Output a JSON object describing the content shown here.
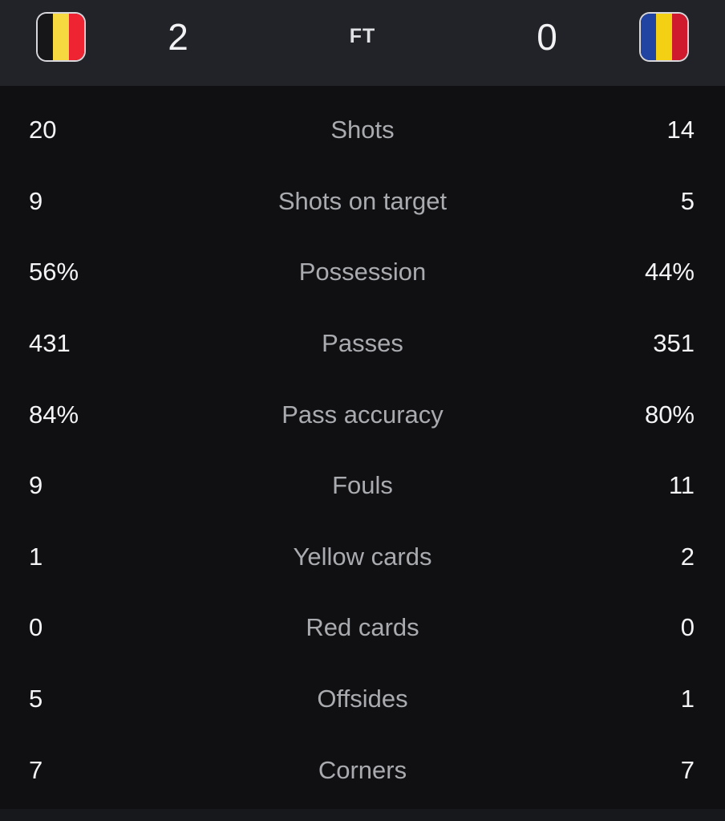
{
  "header": {
    "home_team": "Belgium",
    "away_team": "Romania",
    "home_score": "2",
    "away_score": "0",
    "status": "FT",
    "home_flag": {
      "stripes": [
        "#161619",
        "#f6d840",
        "#ee2433"
      ]
    },
    "away_flag": {
      "stripes": [
        "#2143a1",
        "#f4d014",
        "#cf1a2e"
      ]
    }
  },
  "stats": {
    "rows": [
      {
        "home": "20",
        "label": "Shots",
        "away": "14"
      },
      {
        "home": "9",
        "label": "Shots on target",
        "away": "5"
      },
      {
        "home": "56%",
        "label": "Possession",
        "away": "44%"
      },
      {
        "home": "431",
        "label": "Passes",
        "away": "351"
      },
      {
        "home": "84%",
        "label": "Pass accuracy",
        "away": "80%"
      },
      {
        "home": "9",
        "label": "Fouls",
        "away": "11"
      },
      {
        "home": "1",
        "label": "Yellow cards",
        "away": "2"
      },
      {
        "home": "0",
        "label": "Red cards",
        "away": "0"
      },
      {
        "home": "5",
        "label": "Offsides",
        "away": "1"
      },
      {
        "home": "7",
        "label": "Corners",
        "away": "7"
      }
    ]
  },
  "colors": {
    "header_bg": "#222329",
    "body_bg": "#101013",
    "value_text": "#f4f4f6",
    "label_text": "#a9abaf",
    "footer_bg": "#17181b"
  }
}
